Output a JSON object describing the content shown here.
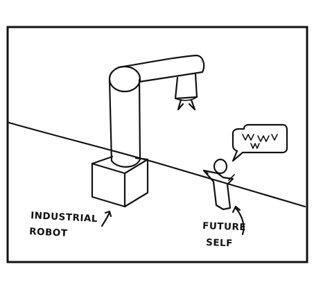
{
  "comic": {
    "robot_label_line1": "INDUSTRIAL",
    "robot_label_line2": "ROBOT",
    "person_label_line1": "FUTURE",
    "person_label_line2": "SELF"
  },
  "colors": {
    "ink": "#111111",
    "paper": "#ffffff"
  }
}
